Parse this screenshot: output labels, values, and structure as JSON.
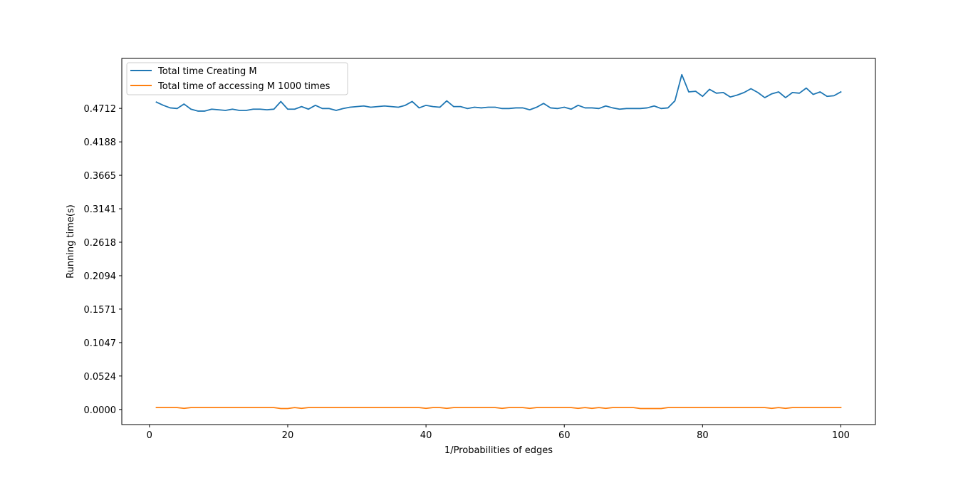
{
  "chart_data": {
    "type": "line",
    "title": "",
    "xlabel": "1/Probabilities of edges",
    "ylabel": "Running time(s)",
    "xlim": [
      -4.0,
      105.0
    ],
    "ylim": [
      -0.0236,
      0.5494
    ],
    "x_ticks": [
      0,
      20,
      40,
      60,
      80,
      100
    ],
    "x_tick_labels": [
      "0",
      "20",
      "40",
      "60",
      "80",
      "100"
    ],
    "y_ticks": [
      0.0,
      0.0524,
      0.1047,
      0.1571,
      0.2094,
      0.2618,
      0.3141,
      0.3665,
      0.4188,
      0.4712
    ],
    "y_tick_labels": [
      "0.0000",
      "0.0524",
      "0.1047",
      "0.1571",
      "0.2094",
      "0.2618",
      "0.3141",
      "0.3665",
      "0.4188",
      "0.4712"
    ],
    "grid": false,
    "legend_position": "top-left",
    "x": [
      1,
      2,
      3,
      4,
      5,
      6,
      7,
      8,
      9,
      10,
      11,
      12,
      13,
      14,
      15,
      16,
      17,
      18,
      19,
      20,
      21,
      22,
      23,
      24,
      25,
      26,
      27,
      28,
      29,
      30,
      31,
      32,
      33,
      34,
      35,
      36,
      37,
      38,
      39,
      40,
      41,
      42,
      43,
      44,
      45,
      46,
      47,
      48,
      49,
      50,
      51,
      52,
      53,
      54,
      55,
      56,
      57,
      58,
      59,
      60,
      61,
      62,
      63,
      64,
      65,
      66,
      67,
      68,
      69,
      70,
      71,
      72,
      73,
      74,
      75,
      76,
      77,
      78,
      79,
      80,
      81,
      82,
      83,
      84,
      85,
      86,
      87,
      88,
      89,
      90,
      91,
      92,
      93,
      94,
      95,
      96,
      97,
      98,
      99,
      100
    ],
    "series": [
      {
        "name": "Total time Creating M",
        "color": "#1f77b4",
        "values": [
          0.481,
          0.476,
          0.472,
          0.471,
          0.478,
          0.47,
          0.467,
          0.467,
          0.47,
          0.469,
          0.468,
          0.47,
          0.468,
          0.468,
          0.47,
          0.47,
          0.469,
          0.47,
          0.482,
          0.47,
          0.47,
          0.474,
          0.47,
          0.476,
          0.471,
          0.471,
          0.468,
          0.471,
          0.473,
          0.474,
          0.475,
          0.473,
          0.474,
          0.475,
          0.474,
          0.473,
          0.476,
          0.482,
          0.472,
          0.476,
          0.474,
          0.473,
          0.483,
          0.474,
          0.474,
          0.471,
          0.473,
          0.472,
          0.473,
          0.473,
          0.471,
          0.471,
          0.472,
          0.472,
          0.469,
          0.473,
          0.479,
          0.472,
          0.471,
          0.473,
          0.47,
          0.476,
          0.472,
          0.472,
          0.471,
          0.475,
          0.472,
          0.47,
          0.471,
          0.471,
          0.471,
          0.472,
          0.475,
          0.471,
          0.472,
          0.483,
          0.524,
          0.497,
          0.498,
          0.49,
          0.501,
          0.495,
          0.496,
          0.489,
          0.492,
          0.496,
          0.502,
          0.496,
          0.488,
          0.494,
          0.497,
          0.488,
          0.496,
          0.495,
          0.503,
          0.493,
          0.497,
          0.49,
          0.491,
          0.497
        ]
      },
      {
        "name": "Total time of accessing M 1000 times",
        "color": "#ff7f0e",
        "values": [
          0.003,
          0.003,
          0.003,
          0.003,
          0.0018,
          0.003,
          0.003,
          0.003,
          0.003,
          0.003,
          0.003,
          0.003,
          0.003,
          0.003,
          0.003,
          0.003,
          0.003,
          0.003,
          0.0015,
          0.0015,
          0.003,
          0.0018,
          0.003,
          0.003,
          0.003,
          0.003,
          0.003,
          0.003,
          0.003,
          0.003,
          0.003,
          0.003,
          0.003,
          0.003,
          0.003,
          0.003,
          0.003,
          0.003,
          0.003,
          0.0018,
          0.003,
          0.003,
          0.0018,
          0.003,
          0.003,
          0.003,
          0.003,
          0.003,
          0.003,
          0.003,
          0.0018,
          0.003,
          0.003,
          0.003,
          0.0018,
          0.003,
          0.003,
          0.003,
          0.003,
          0.003,
          0.003,
          0.0018,
          0.003,
          0.0018,
          0.003,
          0.0018,
          0.003,
          0.003,
          0.003,
          0.003,
          0.0015,
          0.0015,
          0.0015,
          0.0015,
          0.003,
          0.003,
          0.003,
          0.003,
          0.003,
          0.003,
          0.003,
          0.003,
          0.003,
          0.003,
          0.003,
          0.003,
          0.003,
          0.003,
          0.003,
          0.0018,
          0.003,
          0.0018,
          0.003,
          0.003,
          0.003,
          0.003,
          0.003,
          0.003,
          0.003,
          0.003
        ]
      }
    ]
  }
}
